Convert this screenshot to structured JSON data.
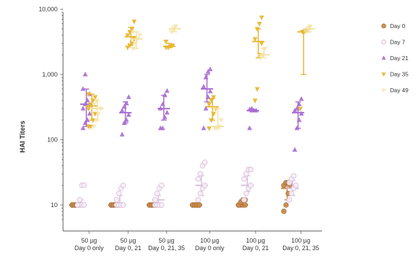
{
  "chart_data": {
    "type": "scatter",
    "subtype": "dot-plot-with-mean-and-error-bars",
    "title": "",
    "xlabel": "",
    "ylabel": "HAI Titers",
    "yscale": "log",
    "ylim": [
      6,
      10000
    ],
    "yticks": [
      {
        "value": 10,
        "label": "10"
      },
      {
        "value": 100,
        "label": "100"
      },
      {
        "value": 1000,
        "label": "1,000"
      },
      {
        "value": 10000,
        "label": "10,000"
      }
    ],
    "grid": false,
    "legend_position": "right",
    "categories": [
      {
        "line1": "50 µg",
        "line2": "Day 0 only"
      },
      {
        "line1": "50 µg",
        "line2": "Day 0, 21"
      },
      {
        "line1": "50 µg",
        "line2": "Day 0, 21, 35"
      },
      {
        "line1": "100 µg",
        "line2": "Day 0 only"
      },
      {
        "line1": "100 µg",
        "line2": "Day 0, 21"
      },
      {
        "line1": "100 µg",
        "line2": "Day 0, 21, 35"
      }
    ],
    "series": [
      {
        "name": "Day 0",
        "marker": "circle",
        "color": "#c98a4b",
        "groups": [
          {
            "mean": 10,
            "low": 10,
            "high": 10,
            "points": [
              10,
              10,
              10,
              10,
              10,
              10,
              10,
              10
            ]
          },
          {
            "mean": 10,
            "low": 10,
            "high": 10,
            "points": [
              10,
              10,
              10,
              10,
              10,
              10,
              10,
              10
            ]
          },
          {
            "mean": 10,
            "low": 10,
            "high": 10,
            "points": [
              10,
              10,
              10,
              10,
              10,
              10,
              10,
              10
            ]
          },
          {
            "mean": 10,
            "low": 10,
            "high": 10,
            "points": [
              10,
              10,
              10,
              10,
              10,
              10,
              10,
              10
            ]
          },
          {
            "mean": 10,
            "low": 10,
            "high": 12,
            "points": [
              10,
              10,
              10,
              10,
              10,
              11,
              12,
              12
            ]
          },
          {
            "mean": 18,
            "low": 12,
            "high": 22,
            "points": [
              8,
              10,
              15,
              20,
              20,
              22,
              22
            ]
          }
        ]
      },
      {
        "name": "Day 7",
        "marker": "circle-open",
        "color": "#d9bfd9",
        "groups": [
          {
            "mean": 10,
            "low": 10,
            "high": 12,
            "points": [
              10,
              10,
              10,
              10,
              10,
              12,
              20,
              20
            ]
          },
          {
            "mean": 10,
            "low": 10,
            "high": 14,
            "points": [
              10,
              10,
              10,
              10,
              12,
              15,
              18,
              20
            ]
          },
          {
            "mean": 12,
            "low": 10,
            "high": 14,
            "points": [
              10,
              10,
              10,
              10,
              12,
              15,
              18,
              20
            ]
          },
          {
            "mean": 20,
            "low": 14,
            "high": 28,
            "points": [
              12,
              15,
              18,
              20,
              25,
              30,
              40,
              45
            ]
          },
          {
            "mean": 20,
            "low": 16,
            "high": 28,
            "points": [
              12,
              15,
              18,
              20,
              25,
              30,
              35,
              35
            ]
          },
          {
            "mean": 18,
            "low": 14,
            "high": 24,
            "points": [
              12,
              15,
              18,
              20,
              22,
              25,
              28
            ]
          }
        ]
      },
      {
        "name": "Day 21",
        "marker": "triangle-up",
        "color": "#a86bd1",
        "groups": [
          {
            "mean": 350,
            "low": 160,
            "high": 600,
            "points": [
              150,
              180,
              200,
              250,
              300,
              350,
              400,
              500,
              600,
              1000
            ]
          },
          {
            "mean": 260,
            "low": 180,
            "high": 380,
            "points": [
              120,
              180,
              200,
              240,
              280,
              320,
              360,
              450
            ]
          },
          {
            "mean": 300,
            "low": 200,
            "high": 480,
            "points": [
              150,
              150,
              220,
              260,
              300,
              350,
              480,
              560
            ]
          },
          {
            "mean": 600,
            "low": 380,
            "high": 1000,
            "points": [
              150,
              300,
              450,
              550,
              650,
              900,
              1100,
              1200
            ]
          },
          {
            "mean": 280,
            "low": 280,
            "high": 290,
            "points": [
              150,
              280,
              280,
              280,
              290,
              300
            ]
          },
          {
            "mean": 260,
            "low": 150,
            "high": 380,
            "points": [
              70,
              150,
              200,
              250,
              280,
              300,
              350,
              420
            ]
          }
        ]
      },
      {
        "name": "Day 35",
        "marker": "triangle-down",
        "color": "#e6b62e",
        "groups": [
          {
            "mean": 330,
            "low": 200,
            "high": 500,
            "points": [
              160,
              160,
              200,
              250,
              300,
              350,
              400,
              450,
              500
            ]
          },
          {
            "mean": 3800,
            "low": 2800,
            "high": 5300,
            "points": [
              2600,
              2800,
              3000,
              3500,
              4000,
              4500,
              5000,
              6500
            ]
          },
          {
            "mean": 2700,
            "low": 2600,
            "high": 3000,
            "points": [
              2600,
              2600,
              2700,
              2800,
              3200
            ]
          },
          {
            "mean": 320,
            "low": 200,
            "high": 430,
            "points": [
              150,
              200,
              250,
              300,
              350,
              400,
              450
            ]
          },
          {
            "mean": 3200,
            "low": 1800,
            "high": 5000,
            "points": [
              400,
              600,
              2000,
              3000,
              3500,
              5000,
              6000,
              7500
            ]
          },
          {
            "mean": 4500,
            "low": 1000,
            "high": 4600,
            "points": [
              300,
              4500,
              4600,
              4800
            ]
          }
        ]
      },
      {
        "name": "Day 49",
        "marker": "triangle-down-faint",
        "color": "#f3e2a4",
        "groups": [
          {
            "mean": 300,
            "low": 200,
            "high": 400,
            "points": [
              160,
              200,
              250,
              300,
              350,
              400
            ]
          },
          {
            "mean": 3500,
            "low": 2500,
            "high": 4500,
            "points": [
              2500,
              3000,
              3500,
              4000,
              4500
            ]
          },
          {
            "mean": 5000,
            "low": 4500,
            "high": 5500,
            "points": [
              4500,
              5000,
              5500
            ]
          },
          {
            "mean": 160,
            "low": 150,
            "high": 300,
            "points": [
              150,
              150,
              160,
              200,
              300
            ]
          },
          {
            "mean": 2000,
            "low": 1800,
            "high": 2500,
            "points": [
              1800,
              2000,
              2500
            ]
          },
          {
            "mean": 5000,
            "low": 4500,
            "high": 5500,
            "points": [
              4500,
              5000,
              5500
            ]
          }
        ]
      }
    ]
  }
}
